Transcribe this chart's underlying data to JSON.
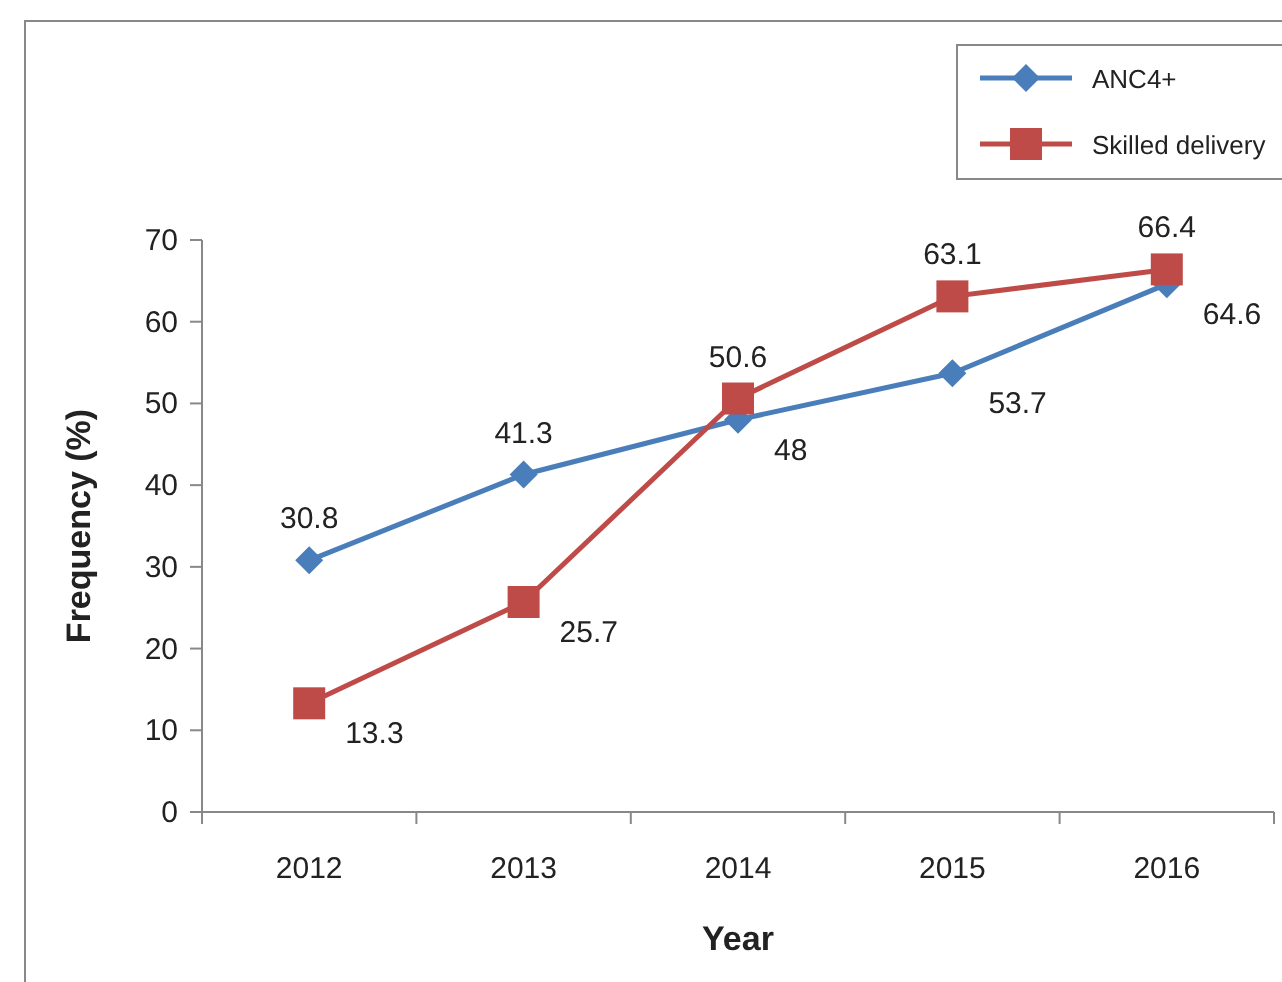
{
  "chart_data": {
    "type": "line",
    "xlabel": "Year",
    "ylabel": "Frequency (%)",
    "categories": [
      "2012",
      "2013",
      "2014",
      "2015",
      "2016"
    ],
    "ylim": [
      0,
      70
    ],
    "yticks": [
      0,
      10,
      20,
      30,
      40,
      50,
      60,
      70
    ],
    "grid": false,
    "legend": "top right",
    "data_labels": true,
    "series": [
      {
        "name": "ANC4+",
        "color": "#4a7ebb",
        "marker": "diamond",
        "values": [
          30.8,
          41.3,
          48,
          53.7,
          64.6
        ]
      },
      {
        "name": "Skilled delivery",
        "color": "#be4b48",
        "marker": "square",
        "values": [
          13.3,
          25.7,
          50.6,
          63.1,
          66.4
        ]
      }
    ]
  }
}
